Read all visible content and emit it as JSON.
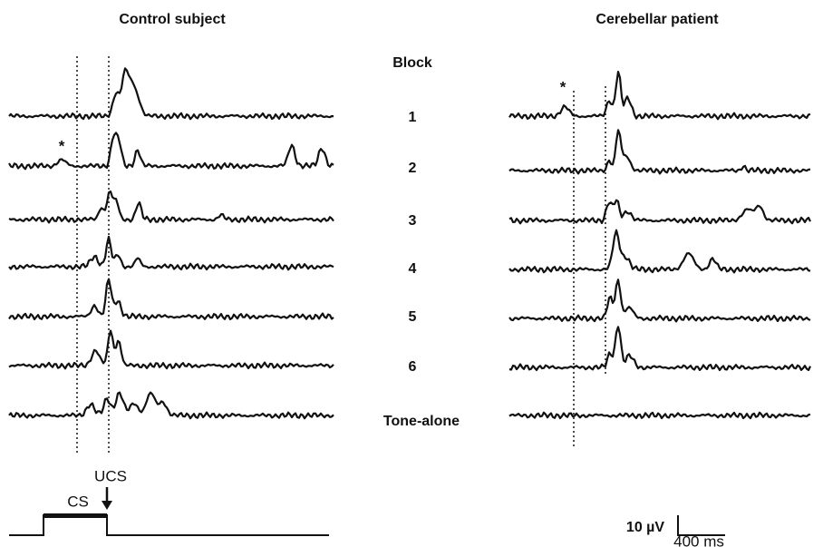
{
  "header": {
    "left_title": "Control subject",
    "right_title": "Cerebellar patient",
    "block_label": "Block"
  },
  "blocks": [
    "1",
    "2",
    "3",
    "4",
    "5",
    "6",
    "Tone-alone"
  ],
  "markers": [
    "*",
    "*"
  ],
  "stimulus": {
    "cs": "CS",
    "ucs": "UCS"
  },
  "scale": {
    "amplitude": "10 µV",
    "time": "400 ms"
  }
}
